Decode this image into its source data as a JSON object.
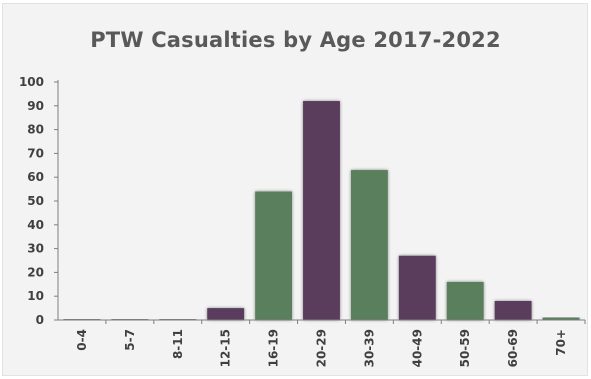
{
  "chart_data": {
    "type": "bar",
    "title": "PTW Casualties by Age 2017-2022",
    "xlabel": "",
    "ylabel": "",
    "categories": [
      "0-4",
      "5-7",
      "8-11",
      "12-15",
      "16-19",
      "20-29",
      "30-39",
      "40-49",
      "50-59",
      "60-69",
      "70+"
    ],
    "values": [
      0,
      0,
      0,
      5,
      54,
      92,
      63,
      27,
      16,
      8,
      1
    ],
    "bar_colors": [
      "#5a3e5c",
      "#5a3e5c",
      "#5a3e5c",
      "#5a3e5c",
      "#5a7f5c",
      "#5a3e5c",
      "#5a7f5c",
      "#5a3e5c",
      "#5a7f5c",
      "#5a3e5c",
      "#5a7f5c"
    ],
    "ylim": [
      0,
      100
    ],
    "y_ticks": [
      "0",
      "10",
      "20",
      "30",
      "40",
      "50",
      "60",
      "70",
      "80",
      "90",
      "100"
    ],
    "grid": false,
    "legend": "none"
  }
}
